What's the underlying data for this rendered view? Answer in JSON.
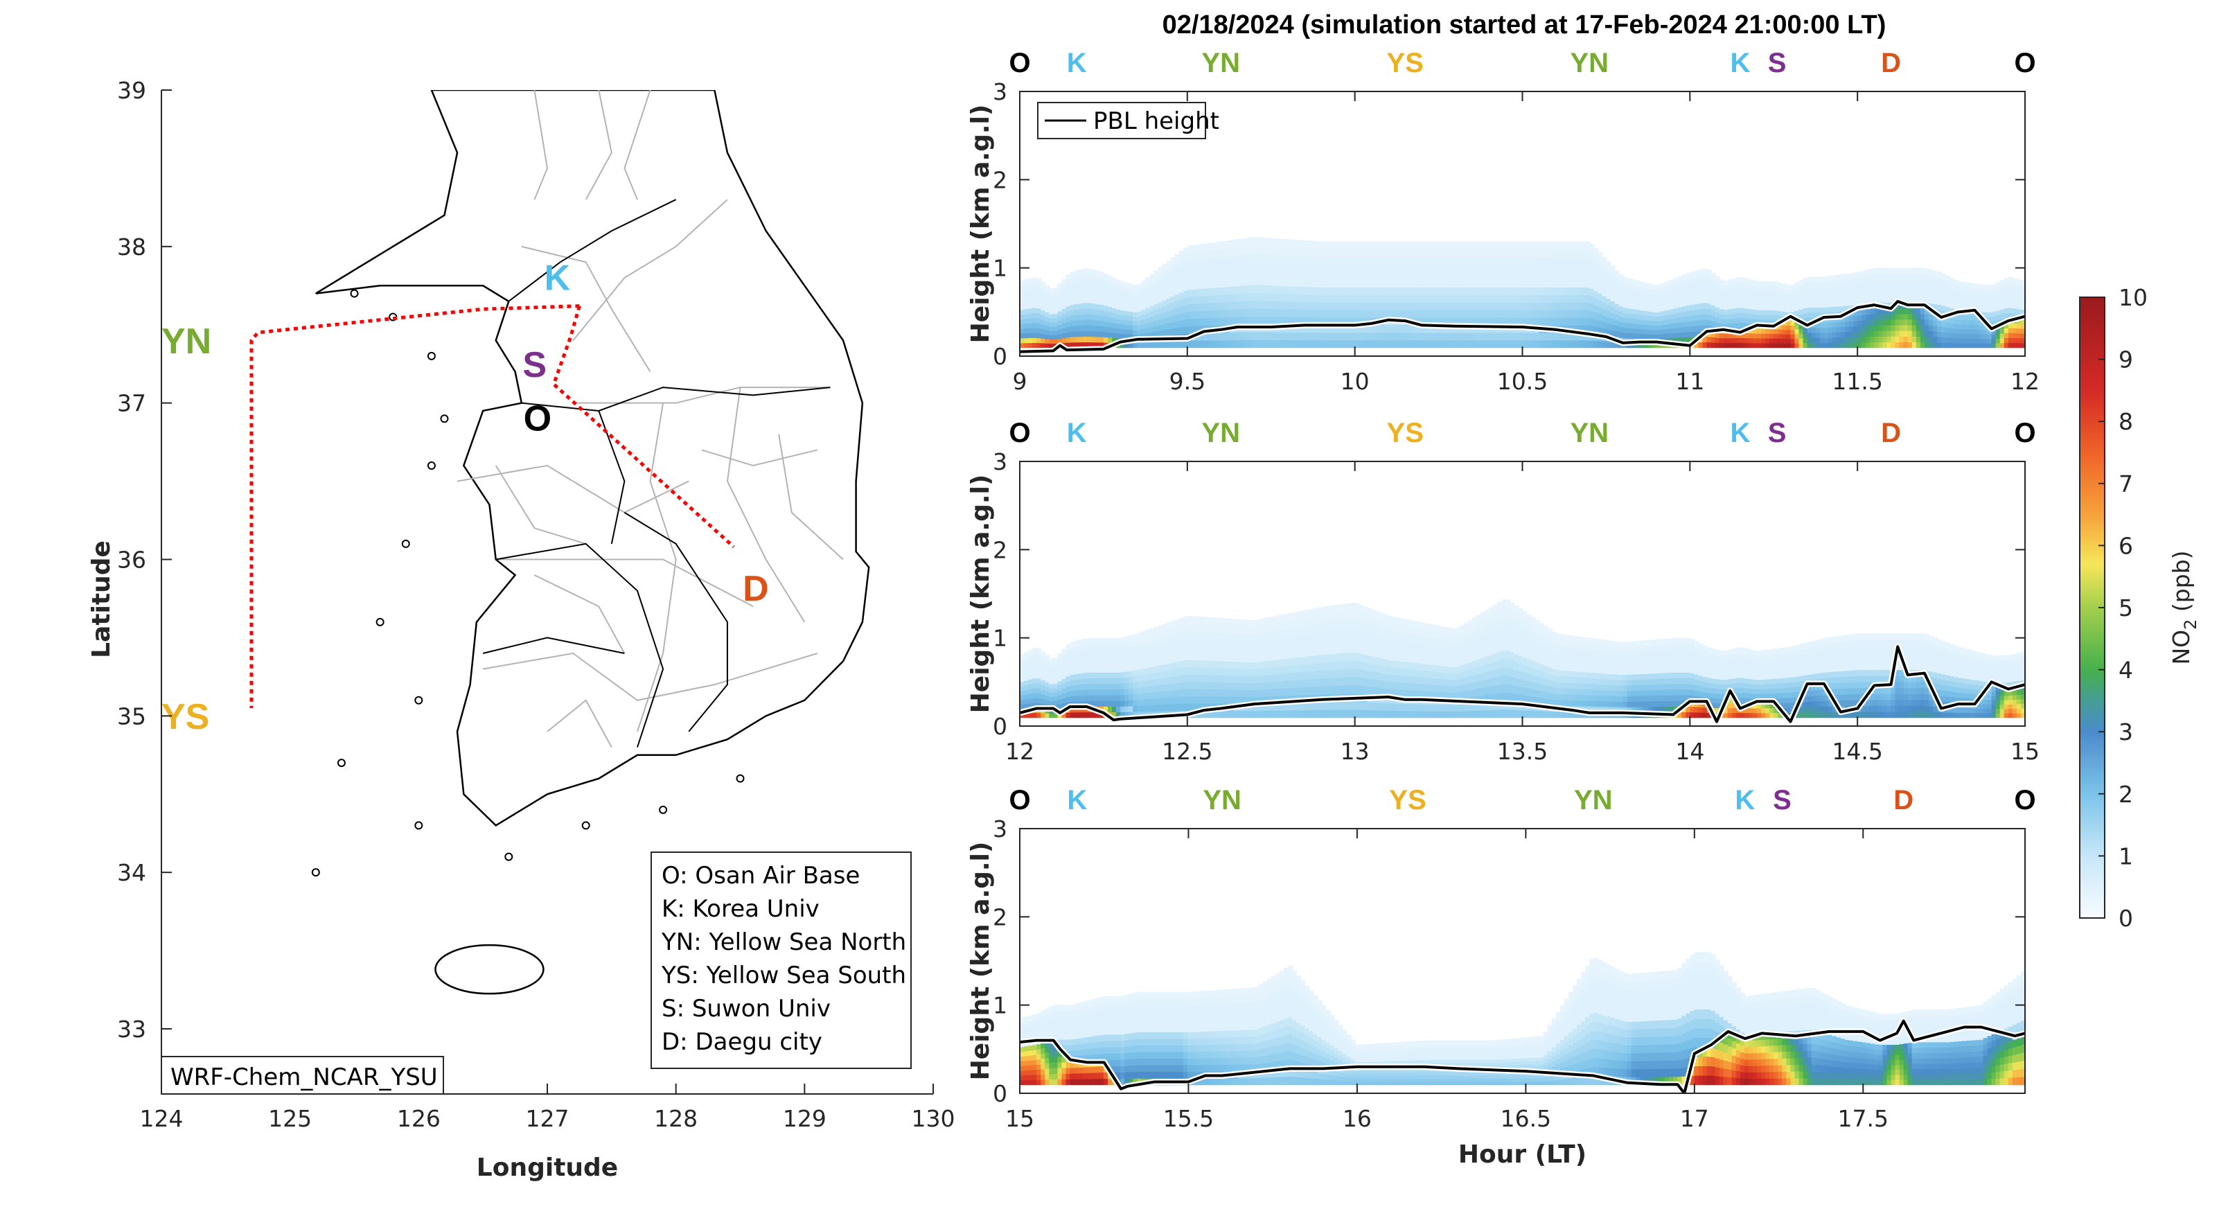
{
  "title": "02/18/2024 (simulation started at 17-Feb-2024 21:00:00 LT)",
  "colors": {
    "O": "#000000",
    "K": "#4dbeee",
    "YN": "#77ac30",
    "YS": "#edb120",
    "S": "#7e2f8e",
    "D": "#d95319",
    "route": "#ff0000",
    "coast": "#000000",
    "admin": "#b3b3b3",
    "pbl": "#000000"
  },
  "chart_data": [
    {
      "type": "map",
      "xlabel": "Longitude",
      "ylabel": "Latitude",
      "xlim": [
        124,
        130
      ],
      "ylim": [
        32.6,
        39
      ],
      "xticks": [
        "124",
        "125",
        "126",
        "127",
        "128",
        "129",
        "130"
      ],
      "yticks": [
        "33",
        "34",
        "35",
        "36",
        "37",
        "38",
        "39"
      ],
      "model_label": "WRF-Chem_NCAR_YSU",
      "legend": [
        "O: Osan Air Base",
        "K: Korea Univ",
        "YN: Yellow Sea North",
        "YS: Yellow Sea South",
        "S: Suwon Univ",
        "D: Daegu city"
      ],
      "sites": [
        {
          "code": "K",
          "lon": 127.03,
          "lat": 37.59
        },
        {
          "code": "S",
          "lon": 126.97,
          "lat": 37.3
        },
        {
          "code": "O",
          "lon": 127.03,
          "lat": 37.09
        },
        {
          "code": "D",
          "lon": 128.6,
          "lat": 35.87
        },
        {
          "code": "YN",
          "lon": 124.7,
          "lat": 37.45
        },
        {
          "code": "YS",
          "lon": 124.7,
          "lat": 35.05
        }
      ],
      "route": [
        [
          127.25,
          37.62
        ],
        [
          126.5,
          37.6
        ],
        [
          124.75,
          37.45
        ],
        [
          124.7,
          37.4
        ],
        [
          124.7,
          35.05
        ]
      ],
      "route2": [
        [
          127.25,
          37.62
        ],
        [
          127.18,
          37.42
        ],
        [
          127.05,
          37.12
        ],
        [
          128.45,
          36.08
        ]
      ]
    },
    {
      "type": "heatmap",
      "panel": 1,
      "xlabel": "",
      "ylabel": "Height (km a.g.l)",
      "xlim": [
        9,
        12
      ],
      "ylim": [
        0,
        3
      ],
      "xticks": [
        "9",
        "9.5",
        "10",
        "10.5",
        "11",
        "11.5",
        "12"
      ],
      "yticks": [
        "0",
        "1",
        "2",
        "3"
      ],
      "legend": [
        "PBL height"
      ],
      "site_labels": [
        {
          "code": "O",
          "x": 9.0
        },
        {
          "code": "K",
          "x": 9.17
        },
        {
          "code": "YN",
          "x": 9.6
        },
        {
          "code": "YS",
          "x": 10.15
        },
        {
          "code": "YN",
          "x": 10.7
        },
        {
          "code": "K",
          "x": 11.15
        },
        {
          "code": "S",
          "x": 11.26
        },
        {
          "code": "D",
          "x": 11.6
        },
        {
          "code": "O",
          "x": 12.0
        }
      ],
      "pbl_x": [
        9,
        9.1,
        9.12,
        9.14,
        9.25,
        9.3,
        9.35,
        9.5,
        9.55,
        9.6,
        9.65,
        9.7,
        9.75,
        9.85,
        10,
        10.05,
        10.1,
        10.15,
        10.2,
        10.3,
        10.5,
        10.6,
        10.7,
        10.75,
        10.8,
        10.85,
        10.9,
        11.0,
        11.05,
        11.1,
        11.15,
        11.2,
        11.25,
        11.3,
        11.35,
        11.4,
        11.45,
        11.5,
        11.55,
        11.6,
        11.62,
        11.65,
        11.7,
        11.75,
        11.8,
        11.85,
        11.9,
        11.95,
        12
      ],
      "pbl_y": [
        0.05,
        0.06,
        0.12,
        0.07,
        0.08,
        0.16,
        0.19,
        0.2,
        0.28,
        0.3,
        0.33,
        0.33,
        0.33,
        0.35,
        0.35,
        0.37,
        0.41,
        0.4,
        0.35,
        0.34,
        0.33,
        0.3,
        0.25,
        0.22,
        0.15,
        0.16,
        0.16,
        0.12,
        0.28,
        0.3,
        0.27,
        0.35,
        0.34,
        0.45,
        0.35,
        0.44,
        0.45,
        0.55,
        0.58,
        0.54,
        0.62,
        0.58,
        0.58,
        0.44,
        0.5,
        0.52,
        0.31,
        0.4,
        0.45
      ],
      "no2_x": [
        9,
        9.05,
        9.1,
        9.15,
        9.2,
        9.25,
        9.3,
        9.35,
        9.5,
        9.7,
        9.9,
        10.1,
        10.3,
        10.5,
        10.7,
        10.8,
        10.9,
        11.0,
        11.05,
        11.1,
        11.15,
        11.2,
        11.25,
        11.3,
        11.35,
        11.4,
        11.5,
        11.55,
        11.6,
        11.65,
        11.7,
        11.75,
        11.8,
        11.9,
        11.95,
        12
      ],
      "no2_surface_ppb": [
        8,
        9,
        10,
        10,
        10,
        10,
        4,
        2.5,
        2.5,
        2,
        2,
        2,
        2,
        2,
        2.5,
        3,
        5,
        6,
        9,
        10,
        10,
        9,
        10,
        10,
        4,
        3,
        4,
        5,
        6,
        7,
        4,
        3,
        3,
        3,
        9,
        9
      ],
      "no2_top_km": [
        0.85,
        0.9,
        0.75,
        0.95,
        1.0,
        0.95,
        0.85,
        0.8,
        1.25,
        1.35,
        1.3,
        1.3,
        1.3,
        1.3,
        1.3,
        0.9,
        0.8,
        0.95,
        1.0,
        0.85,
        0.9,
        0.85,
        0.85,
        0.8,
        0.9,
        0.9,
        0.95,
        1.0,
        1.0,
        1.0,
        1.0,
        0.95,
        0.85,
        0.8,
        0.9,
        0.85
      ]
    },
    {
      "type": "heatmap",
      "panel": 2,
      "xlabel": "",
      "ylabel": "Height (km a.g.l)",
      "xlim": [
        12,
        15
      ],
      "ylim": [
        0,
        3
      ],
      "xticks": [
        "12",
        "12.5",
        "13",
        "13.5",
        "14",
        "14.5",
        "15"
      ],
      "yticks": [
        "0",
        "1",
        "2",
        "3"
      ],
      "site_labels": [
        {
          "code": "O",
          "x": 12.0
        },
        {
          "code": "K",
          "x": 12.17
        },
        {
          "code": "YN",
          "x": 12.6
        },
        {
          "code": "YS",
          "x": 13.15
        },
        {
          "code": "YN",
          "x": 13.7
        },
        {
          "code": "K",
          "x": 14.15
        },
        {
          "code": "S",
          "x": 14.26
        },
        {
          "code": "D",
          "x": 14.6
        },
        {
          "code": "O",
          "x": 15.0
        }
      ],
      "pbl_x": [
        12,
        12.05,
        12.1,
        12.12,
        12.15,
        12.2,
        12.25,
        12.28,
        12.3,
        12.5,
        12.55,
        12.6,
        12.7,
        12.9,
        13.1,
        13.15,
        13.2,
        13.5,
        13.65,
        13.7,
        13.8,
        13.95,
        14.0,
        14.05,
        14.08,
        14.12,
        14.15,
        14.2,
        14.25,
        14.3,
        14.35,
        14.4,
        14.45,
        14.5,
        14.55,
        14.6,
        14.62,
        14.65,
        14.7,
        14.75,
        14.8,
        14.85,
        14.9,
        14.95,
        15
      ],
      "pbl_y": [
        0.15,
        0.2,
        0.2,
        0.15,
        0.22,
        0.22,
        0.15,
        0.07,
        0.08,
        0.13,
        0.18,
        0.2,
        0.25,
        0.3,
        0.33,
        0.3,
        0.3,
        0.25,
        0.18,
        0.15,
        0.15,
        0.13,
        0.28,
        0.28,
        0.05,
        0.4,
        0.2,
        0.28,
        0.28,
        0.05,
        0.48,
        0.48,
        0.16,
        0.2,
        0.46,
        0.47,
        0.9,
        0.58,
        0.6,
        0.2,
        0.25,
        0.25,
        0.5,
        0.42,
        0.47
      ],
      "no2_x": [
        12,
        12.05,
        12.1,
        12.15,
        12.2,
        12.25,
        12.3,
        12.35,
        12.5,
        12.7,
        12.9,
        13.0,
        13.1,
        13.3,
        13.45,
        13.6,
        13.8,
        13.95,
        14.0,
        14.05,
        14.1,
        14.15,
        14.2,
        14.3,
        14.4,
        14.5,
        14.6,
        14.7,
        14.8,
        14.9,
        14.95,
        15
      ],
      "no2_surface_ppb": [
        9,
        9,
        4,
        10,
        10,
        10,
        3,
        2,
        2,
        2,
        2,
        2,
        2,
        2,
        2,
        2,
        2.5,
        6,
        9,
        10,
        7,
        9,
        8,
        4,
        3.5,
        3.5,
        3,
        3.5,
        3,
        3,
        8,
        6
      ],
      "no2_top_km": [
        0.8,
        0.9,
        0.75,
        0.95,
        1.0,
        1.0,
        1.0,
        1.05,
        1.25,
        1.2,
        1.35,
        1.4,
        1.25,
        1.1,
        1.45,
        1.05,
        0.95,
        1.0,
        1.0,
        0.9,
        0.85,
        0.9,
        0.85,
        0.9,
        1.0,
        1.05,
        1.05,
        1.05,
        0.9,
        0.8,
        0.8,
        0.85
      ]
    },
    {
      "type": "heatmap",
      "panel": 3,
      "xlabel": "Hour (LT)",
      "ylabel": "Height (km a.g.l)",
      "xlim": [
        15,
        17.98
      ],
      "ylim": [
        0,
        3
      ],
      "xticks": [
        "15",
        "15.5",
        "16",
        "16.5",
        "17",
        "17.5"
      ],
      "yticks": [
        "0",
        "1",
        "2",
        "3"
      ],
      "site_labels": [
        {
          "code": "O",
          "x": 15.0
        },
        {
          "code": "K",
          "x": 15.17
        },
        {
          "code": "YN",
          "x": 15.6
        },
        {
          "code": "YS",
          "x": 16.15
        },
        {
          "code": "YN",
          "x": 16.7
        },
        {
          "code": "K",
          "x": 17.15
        },
        {
          "code": "S",
          "x": 17.26
        },
        {
          "code": "D",
          "x": 17.62
        },
        {
          "code": "O",
          "x": 17.98
        }
      ],
      "pbl_x": [
        15,
        15.05,
        15.1,
        15.12,
        15.15,
        15.2,
        15.25,
        15.3,
        15.32,
        15.4,
        15.5,
        15.55,
        15.6,
        15.8,
        15.9,
        16.0,
        16.2,
        16.3,
        16.5,
        16.7,
        16.8,
        16.9,
        16.95,
        16.97,
        17.0,
        17.05,
        17.1,
        17.15,
        17.2,
        17.3,
        17.4,
        17.5,
        17.55,
        17.6,
        17.62,
        17.65,
        17.7,
        17.8,
        17.85,
        17.9,
        17.95,
        17.98
      ],
      "pbl_y": [
        0.58,
        0.6,
        0.6,
        0.5,
        0.38,
        0.35,
        0.35,
        0.05,
        0.08,
        0.13,
        0.13,
        0.2,
        0.2,
        0.28,
        0.28,
        0.3,
        0.3,
        0.28,
        0.25,
        0.2,
        0.12,
        0.1,
        0.1,
        0.0,
        0.45,
        0.55,
        0.7,
        0.62,
        0.68,
        0.65,
        0.7,
        0.7,
        0.6,
        0.68,
        0.82,
        0.6,
        0.65,
        0.75,
        0.75,
        0.7,
        0.65,
        0.68
      ],
      "no2_x": [
        15,
        15.05,
        15.1,
        15.15,
        15.2,
        15.25,
        15.3,
        15.35,
        15.5,
        15.7,
        15.8,
        16.0,
        16.2,
        16.4,
        16.55,
        16.7,
        16.8,
        16.95,
        17.0,
        17.05,
        17.1,
        17.15,
        17.25,
        17.35,
        17.45,
        17.55,
        17.6,
        17.65,
        17.75,
        17.85,
        17.95,
        17.98
      ],
      "no2_surface_ppb": [
        9,
        9,
        5,
        10,
        10,
        10,
        2.5,
        6,
        2.5,
        2,
        2,
        2,
        2,
        2,
        2,
        2,
        2.5,
        6,
        9,
        10,
        8,
        10,
        8,
        3.5,
        3.5,
        3.5,
        6,
        3.5,
        3.5,
        3.5,
        7,
        7
      ],
      "no2_top_km": [
        0.85,
        0.9,
        1.0,
        1.0,
        1.05,
        1.1,
        1.1,
        1.15,
        1.15,
        1.2,
        1.45,
        0.55,
        0.6,
        0.6,
        0.65,
        1.55,
        1.35,
        1.4,
        1.6,
        1.6,
        1.35,
        1.1,
        1.15,
        1.2,
        1.0,
        0.9,
        0.9,
        0.95,
        0.95,
        1.0,
        1.3,
        1.4
      ]
    },
    {
      "type": "colorbar",
      "label": "NO2 (ppb)",
      "label_main": "NO",
      "label_sub": "2",
      "label_unit": " (ppb)",
      "lim": [
        0,
        10
      ],
      "ticks": [
        "0",
        "1",
        "2",
        "3",
        "4",
        "5",
        "6",
        "7",
        "8",
        "9",
        "10"
      ],
      "stops": [
        {
          "v": 0,
          "c": "#f7fbff"
        },
        {
          "v": 1,
          "c": "#c6e7f8"
        },
        {
          "v": 2,
          "c": "#7cc3ea"
        },
        {
          "v": 3,
          "c": "#4a8ccb"
        },
        {
          "v": 3.5,
          "c": "#469d94"
        },
        {
          "v": 4,
          "c": "#46b04c"
        },
        {
          "v": 5,
          "c": "#a4cf4c"
        },
        {
          "v": 5.7,
          "c": "#f6e65a"
        },
        {
          "v": 6.5,
          "c": "#f6a23a"
        },
        {
          "v": 7.5,
          "c": "#ef6228"
        },
        {
          "v": 8.5,
          "c": "#d42a26"
        },
        {
          "v": 10,
          "c": "#9a1a1d"
        }
      ]
    }
  ]
}
